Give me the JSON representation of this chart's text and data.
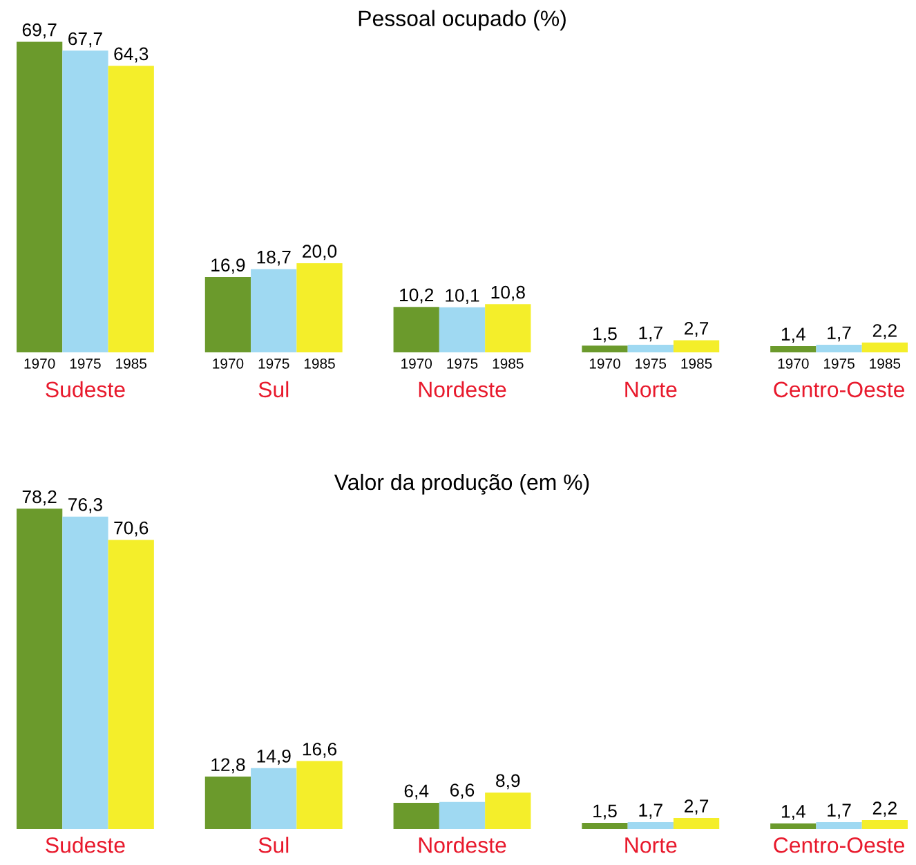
{
  "chart_data": [
    {
      "type": "bar",
      "title": "Pessoal ocupado (%)",
      "categories": [
        "Sudeste",
        "Sul",
        "Nordeste",
        "Norte",
        "Centro-Oeste"
      ],
      "legend": false,
      "series": [
        {
          "name": "1970",
          "color": "#6b9a2c",
          "values": [
            69.7,
            16.9,
            10.2,
            1.5,
            1.4
          ],
          "value_labels": [
            "69,7",
            "16,9",
            "10,2",
            "1,5",
            "1,4"
          ]
        },
        {
          "name": "1975",
          "color": "#9fd9f2",
          "values": [
            67.7,
            18.7,
            10.1,
            1.7,
            1.7
          ],
          "value_labels": [
            "67,7",
            "18,7",
            "10,1",
            "1,7",
            "1,7"
          ]
        },
        {
          "name": "1985",
          "color": "#f4ee2a",
          "values": [
            64.3,
            20.0,
            10.8,
            2.7,
            2.2
          ],
          "value_labels": [
            "64,3",
            "20,0",
            "10,8",
            "2,7",
            "2,2"
          ]
        }
      ]
    },
    {
      "type": "bar",
      "title": "Valor da produção (em %)",
      "categories": [
        "Sudeste",
        "Sul",
        "Nordeste",
        "Norte",
        "Centro-Oeste"
      ],
      "legend": false,
      "series": [
        {
          "color": "#6b9a2c",
          "values": [
            78.2,
            12.8,
            6.4,
            1.5,
            1.4
          ],
          "value_labels": [
            "78,2",
            "12,8",
            "6,4",
            "1,5",
            "1,4"
          ]
        },
        {
          "color": "#9fd9f2",
          "values": [
            76.3,
            14.9,
            6.6,
            1.7,
            1.7
          ],
          "value_labels": [
            "76,3",
            "14,9",
            "6,6",
            "1,7",
            "1,7"
          ]
        },
        {
          "color": "#f4ee2a",
          "values": [
            70.6,
            16.6,
            8.9,
            2.7,
            2.2
          ],
          "value_labels": [
            "70,6",
            "16,6",
            "8,9",
            "2,7",
            "2,2"
          ]
        }
      ]
    }
  ]
}
